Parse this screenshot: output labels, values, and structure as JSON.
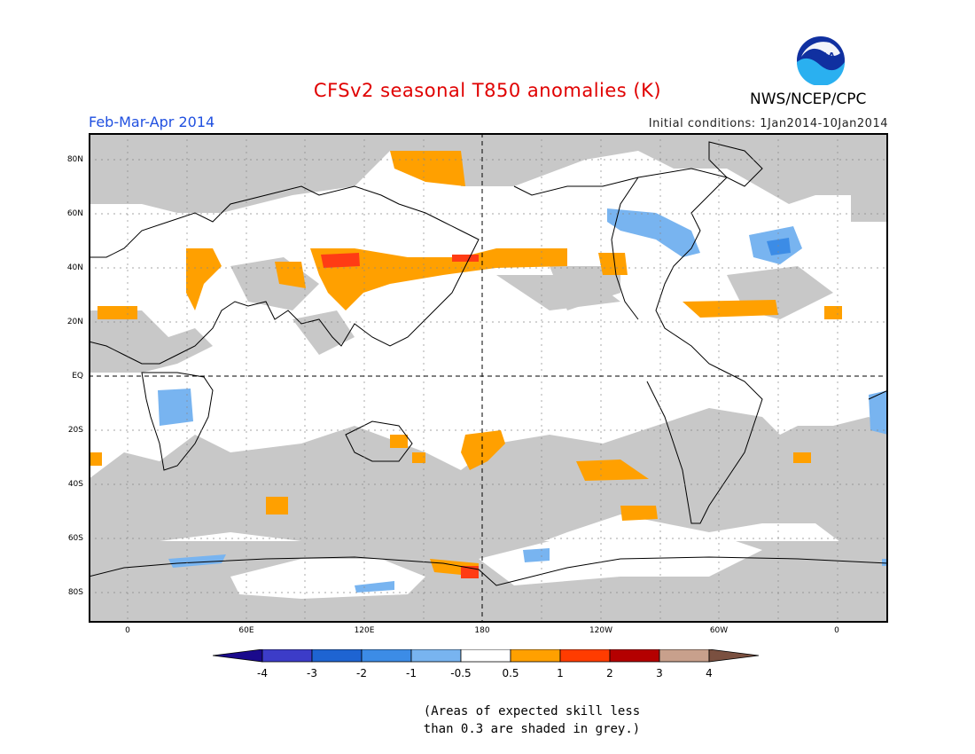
{
  "title": "CFSv2 seasonal T850 anomalies (K)",
  "season": "Feb-Mar-Apr 2014",
  "initial_conditions": "Initial conditions: 1Jan2014-10Jan2014",
  "agency": "NWS/NCEP/CPC",
  "logo_text": "NOAA",
  "lat_labels": [
    "80N",
    "60N",
    "40N",
    "20N",
    "EQ",
    "20S",
    "40S",
    "60S",
    "80S"
  ],
  "lon_labels": [
    "0",
    "60E",
    "120E",
    "180",
    "120W",
    "60W",
    "0"
  ],
  "colorbar": {
    "labels": [
      "-4",
      "-3",
      "-2",
      "-1",
      "-0.5",
      "0.5",
      "1",
      "2",
      "3",
      "4"
    ],
    "colors": [
      "#1a0a8c",
      "#3c3cc8",
      "#1e64d2",
      "#3c8ce6",
      "#78b4f0",
      "#ffffff",
      "#ffa000",
      "#ff3c00",
      "#b40000",
      "#c8a08c",
      "#7a5040"
    ]
  },
  "note": [
    "(Areas of expected skill less",
    "than 0.3 are shaded in grey.)"
  ],
  "colors": {
    "grey": "#c8c8c8",
    "orange": "#ffa000",
    "red": "#ff3c14",
    "lightblue": "#78b4f0"
  }
}
